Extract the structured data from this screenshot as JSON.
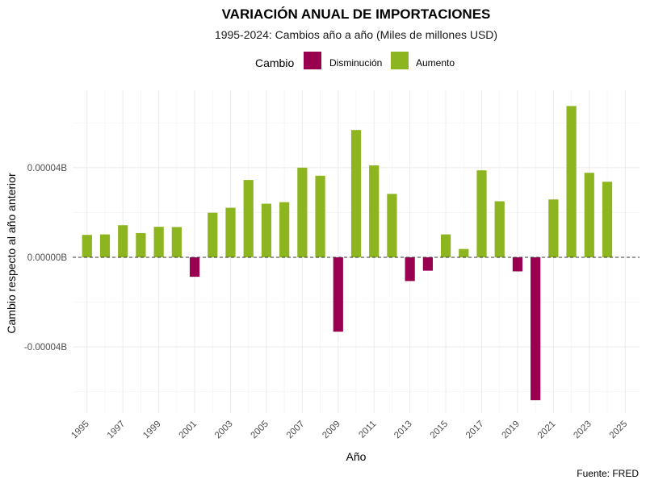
{
  "chart_data": {
    "type": "bar",
    "title": "VARIACIÓN ANUAL DE IMPORTACIONES",
    "subtitle": "1995-2024: Cambios año a año (Miles de millones USD)",
    "xlabel": "Año",
    "ylabel": "Cambio respecto al año anterior",
    "caption": "Fuente: FRED",
    "legend": {
      "title": "Cambio",
      "position": "top",
      "entries": [
        {
          "label": "Disminución",
          "color": "#990050"
        },
        {
          "label": "Aumento",
          "color": "#8db51f"
        }
      ]
    },
    "x": [
      1995,
      1996,
      1997,
      1998,
      1999,
      2000,
      2001,
      2002,
      2003,
      2004,
      2005,
      2006,
      2007,
      2008,
      2009,
      2010,
      2011,
      2012,
      2013,
      2014,
      2015,
      2016,
      2017,
      2018,
      2019,
      2020,
      2021,
      2022,
      2023,
      2024
    ],
    "values": [
      1e-05,
      1.02e-05,
      1.43e-05,
      1.08e-05,
      1.36e-05,
      1.35e-05,
      -8.7e-06,
      1.99e-05,
      2.21e-05,
      3.45e-05,
      2.39e-05,
      2.46e-05,
      4e-05,
      3.64e-05,
      -3.32e-05,
      5.68e-05,
      4.1e-05,
      2.83e-05,
      -1.06e-05,
      -6e-06,
      1.02e-05,
      3.7e-06,
      3.88e-05,
      2.5e-05,
      -6.3e-06,
      -6.38e-05,
      2.58e-05,
      6.75e-05,
      3.77e-05,
      3.37e-05
    ],
    "x_ticks": [
      "1995",
      "1997",
      "1999",
      "2001",
      "2003",
      "2005",
      "2007",
      "2009",
      "2011",
      "2013",
      "2015",
      "2017",
      "2019",
      "2021",
      "2023",
      "2025"
    ],
    "y_ticks": [
      {
        "value": -4e-05,
        "label": "-0.00004B"
      },
      {
        "value": 0,
        "label": "0.00000B"
      },
      {
        "value": 4e-05,
        "label": "0.00004B"
      }
    ],
    "xlim": [
      1994.2,
      2025.8
    ],
    "ylim": [
      -6.95e-05,
      7.45e-05
    ],
    "grid": true,
    "zero_line": "dashed"
  }
}
